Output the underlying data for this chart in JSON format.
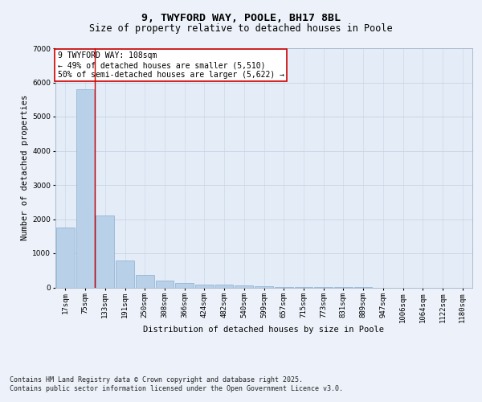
{
  "title": "9, TWYFORD WAY, POOLE, BH17 8BL",
  "subtitle": "Size of property relative to detached houses in Poole",
  "xlabel": "Distribution of detached houses by size in Poole",
  "ylabel": "Number of detached properties",
  "categories": [
    "17sqm",
    "75sqm",
    "133sqm",
    "191sqm",
    "250sqm",
    "308sqm",
    "366sqm",
    "424sqm",
    "482sqm",
    "540sqm",
    "599sqm",
    "657sqm",
    "715sqm",
    "773sqm",
    "831sqm",
    "889sqm",
    "947sqm",
    "1006sqm",
    "1064sqm",
    "1122sqm",
    "1180sqm"
  ],
  "values": [
    1750,
    5800,
    2100,
    800,
    370,
    200,
    130,
    90,
    80,
    50,
    30,
    10,
    5,
    3,
    2,
    1,
    0,
    0,
    0,
    0,
    0
  ],
  "bar_color": "#b8d0e8",
  "bar_edge_color": "#8aafd0",
  "background_color": "#e4ecf7",
  "grid_color": "#c8d4e4",
  "red_line_x": 1.5,
  "annotation_text": "9 TWYFORD WAY: 108sqm\n← 49% of detached houses are smaller (5,510)\n50% of semi-detached houses are larger (5,622) →",
  "annotation_box_color": "#ffffff",
  "annotation_edge_color": "#cc0000",
  "ylim": [
    0,
    7000
  ],
  "yticks": [
    0,
    1000,
    2000,
    3000,
    4000,
    5000,
    6000,
    7000
  ],
  "footer_line1": "Contains HM Land Registry data © Crown copyright and database right 2025.",
  "footer_line2": "Contains public sector information licensed under the Open Government Licence v3.0.",
  "title_fontsize": 9.5,
  "subtitle_fontsize": 8.5,
  "axis_label_fontsize": 7.5,
  "tick_fontsize": 6.5,
  "annotation_fontsize": 7,
  "footer_fontsize": 6
}
